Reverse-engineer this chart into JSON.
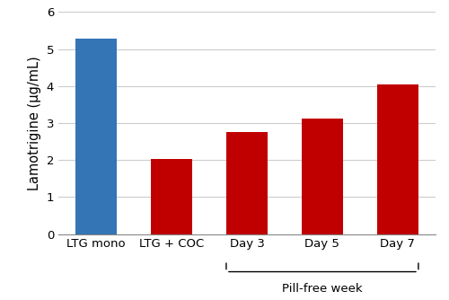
{
  "categories": [
    "LTG mono",
    "LTG + COC",
    "Day 3",
    "Day 5",
    "Day 7"
  ],
  "values": [
    5.27,
    2.02,
    2.75,
    3.13,
    4.05
  ],
  "bar_colors": [
    "#3375b5",
    "#c00000",
    "#c00000",
    "#c00000",
    "#c00000"
  ],
  "ylabel": "Lamotrigine (μg/mL)",
  "ylim": [
    0,
    6
  ],
  "yticks": [
    0,
    1,
    2,
    3,
    4,
    5,
    6
  ],
  "pill_free_label": "Pill-free week",
  "bar_width": 0.55,
  "background_color": "#ffffff",
  "grid_color": "#cccccc",
  "tick_label_fontsize": 9.5,
  "ylabel_fontsize": 10.5
}
